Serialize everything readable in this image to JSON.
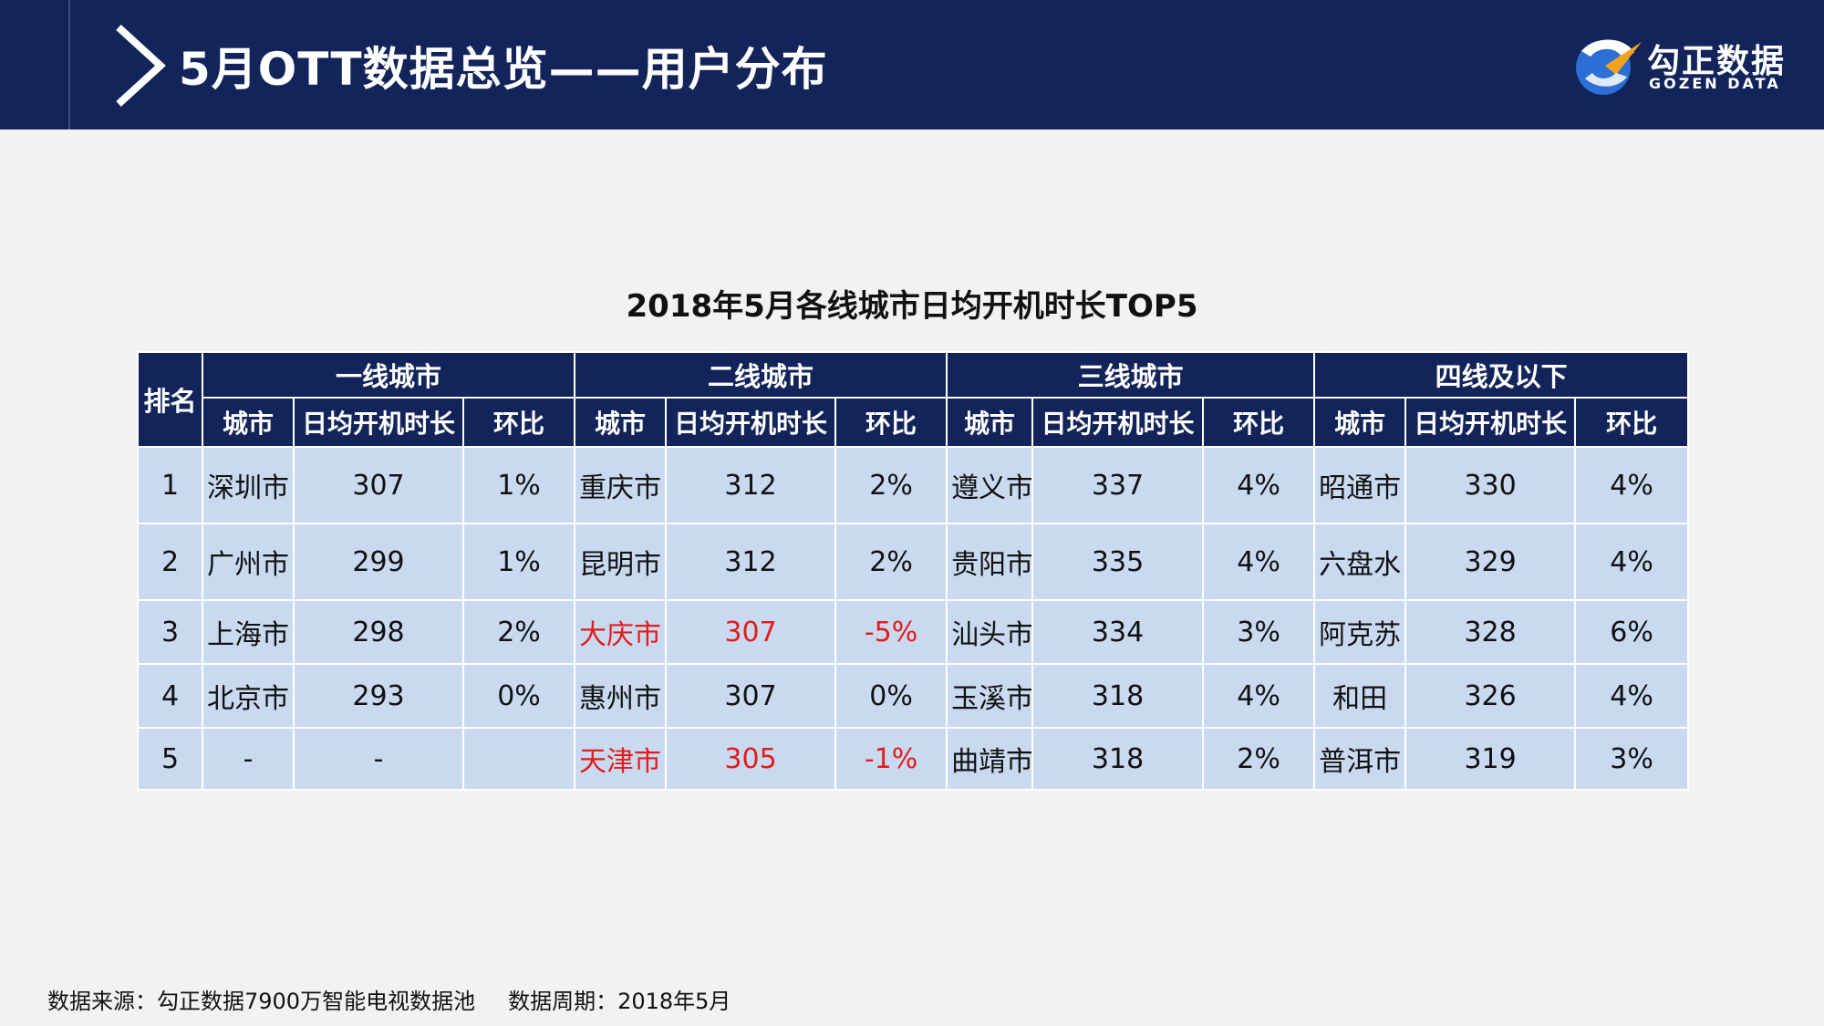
{
  "header": {
    "title": "5月OTT数据总览——用户分布",
    "logo_cn": "勾正数据",
    "logo_en": "GOZEN DATA"
  },
  "table": {
    "title": "2018年5月各线城市日均开机时长TOP5",
    "rank_header": "排名",
    "groups": [
      "一线城市",
      "二线城市",
      "三线城市",
      "四线及以下"
    ],
    "sub_headers": [
      "城市",
      "日均开机时长",
      "环比"
    ],
    "rows": [
      {
        "rank": "1",
        "cells": [
          {
            "city": "深圳市",
            "value": "307",
            "ratio": "1%"
          },
          {
            "city": "重庆市",
            "value": "312",
            "ratio": "2%"
          },
          {
            "city": "遵义市",
            "value": "337",
            "ratio": "4%"
          },
          {
            "city": "昭通市",
            "value": "330",
            "ratio": "4%"
          }
        ]
      },
      {
        "rank": "2",
        "cells": [
          {
            "city": "广州市",
            "value": "299",
            "ratio": "1%"
          },
          {
            "city": "昆明市",
            "value": "312",
            "ratio": "2%"
          },
          {
            "city": "贵阳市",
            "value": "335",
            "ratio": "4%"
          },
          {
            "city": "六盘水",
            "value": "329",
            "ratio": "4%"
          }
        ]
      },
      {
        "rank": "3",
        "cells": [
          {
            "city": "上海市",
            "value": "298",
            "ratio": "2%"
          },
          {
            "city": "大庆市",
            "value": "307",
            "ratio": "-5%"
          },
          {
            "city": "汕头市",
            "value": "334",
            "ratio": "3%"
          },
          {
            "city": "阿克苏",
            "value": "328",
            "ratio": "6%"
          }
        ]
      },
      {
        "rank": "4",
        "cells": [
          {
            "city": "北京市",
            "value": "293",
            "ratio": "0%"
          },
          {
            "city": "惠州市",
            "value": "307",
            "ratio": "0%"
          },
          {
            "city": "玉溪市",
            "value": "318",
            "ratio": "4%"
          },
          {
            "city": "和田",
            "value": "326",
            "ratio": "4%"
          }
        ]
      },
      {
        "rank": "5",
        "cells": [
          {
            "city": "-",
            "value": "-",
            "ratio": ""
          },
          {
            "city": "天津市",
            "value": "305",
            "ratio": "-1%"
          },
          {
            "city": "曲靖市",
            "value": "318",
            "ratio": "2%"
          },
          {
            "city": "普洱市",
            "value": "319",
            "ratio": "3%"
          }
        ]
      }
    ],
    "highlight_color": "#e31c1c"
  },
  "footer": {
    "source": "数据来源：勾正数据7900万智能电视数据池",
    "period": "数据周期：2018年5月"
  },
  "colors": {
    "navy": "#12245a",
    "cell_bg": "#c9daf0"
  }
}
